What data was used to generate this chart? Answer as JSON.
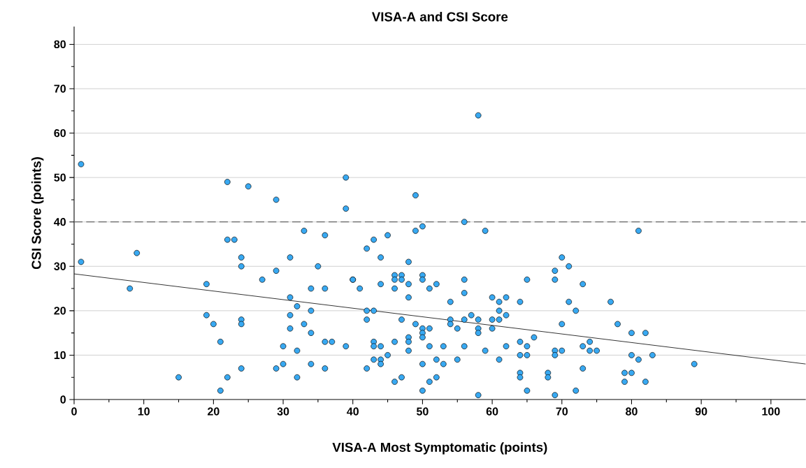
{
  "chart_data": {
    "type": "scatter",
    "title": "VISA-A and CSI Score",
    "xlabel": "VISA-A Most Symptomatic (points)",
    "ylabel": "CSI Score (points)",
    "xlim": [
      0,
      105
    ],
    "ylim": [
      0,
      84
    ],
    "xticks": [
      0,
      {
        "value": 5,
        "label": null
      },
      10,
      {
        "value": 15,
        "label": null
      },
      20,
      {
        "value": 25,
        "label": null
      },
      30,
      {
        "value": 35,
        "label": null
      },
      40,
      {
        "value": 45,
        "label": null
      },
      50,
      {
        "value": 55,
        "label": null
      },
      60,
      {
        "value": 65,
        "label": null
      },
      70,
      {
        "value": 75,
        "label": null
      },
      80,
      {
        "value": 85,
        "label": null
      },
      90,
      {
        "value": 95,
        "label": null
      },
      100
    ],
    "yticks": [
      0,
      {
        "value": 5,
        "label": null
      },
      10,
      {
        "value": 15,
        "label": null
      },
      20,
      {
        "value": 25,
        "label": null
      },
      30,
      {
        "value": 35,
        "label": null
      },
      40,
      {
        "value": 45,
        "label": null
      },
      50,
      {
        "value": 55,
        "label": null
      },
      60,
      {
        "value": 65,
        "label": null
      },
      70,
      {
        "value": 75,
        "label": null
      },
      80
    ],
    "grid": "y",
    "marker": "circle",
    "ref_lines": [
      {
        "axis": "y",
        "value": 40,
        "color": "#666666",
        "line_style": "dashed"
      }
    ],
    "series": [
      {
        "color": "#38a9f2",
        "x": [
          1,
          22,
          25,
          29,
          22,
          23,
          9,
          1,
          24,
          31,
          24,
          29,
          27,
          19,
          8,
          31,
          19,
          20,
          24,
          24,
          31,
          31,
          21,
          30,
          24,
          29,
          30,
          15,
          22,
          21,
          39,
          49,
          39,
          33,
          49,
          50,
          36,
          45,
          43,
          42,
          44,
          48,
          35,
          46,
          47,
          46,
          47,
          50,
          50,
          40,
          40,
          34,
          36,
          41,
          44,
          46,
          48,
          51,
          52,
          48,
          32,
          34,
          42,
          43,
          42,
          47,
          33,
          34,
          49,
          50,
          51,
          50,
          50,
          48,
          48,
          36,
          37,
          43,
          46,
          39,
          43,
          44,
          51,
          32,
          48,
          45,
          43,
          44,
          44,
          34,
          50,
          52,
          36,
          42,
          32,
          47,
          46,
          51,
          52,
          50,
          58,
          56,
          59,
          70,
          71,
          69,
          56,
          65,
          69,
          56,
          54,
          60,
          62,
          61,
          64,
          71,
          61,
          72,
          57,
          62,
          54,
          54,
          56,
          58,
          60,
          61,
          55,
          58,
          58,
          60,
          70,
          66,
          53,
          56,
          62,
          64,
          65,
          59,
          69,
          70,
          64,
          65,
          69,
          55,
          61,
          53,
          64,
          64,
          68,
          68,
          58,
          65,
          69,
          72,
          81,
          73,
          77,
          78,
          80,
          82,
          74,
          73,
          74,
          75,
          80,
          83,
          81,
          89,
          73,
          79,
          80,
          79,
          82
        ],
        "values": [
          53,
          49,
          48,
          45,
          36,
          36,
          33,
          31,
          32,
          32,
          30,
          29,
          27,
          26,
          25,
          23,
          19,
          17,
          18,
          17,
          19,
          16,
          13,
          12,
          7,
          7,
          8,
          5,
          5,
          2,
          50,
          46,
          43,
          38,
          38,
          39,
          37,
          37,
          36,
          34,
          32,
          31,
          30,
          28,
          28,
          27,
          27,
          28,
          27,
          27,
          27,
          25,
          25,
          25,
          26,
          25,
          26,
          25,
          26,
          23,
          21,
          20,
          20,
          20,
          18,
          18,
          17,
          15,
          17,
          16,
          16,
          15,
          14,
          14,
          13,
          13,
          13,
          13,
          13,
          12,
          12,
          12,
          12,
          11,
          11,
          10,
          9,
          9,
          8,
          8,
          8,
          9,
          7,
          7,
          5,
          5,
          4,
          4,
          5,
          2,
          64,
          40,
          38,
          32,
          30,
          29,
          27,
          27,
          27,
          24,
          22,
          23,
          23,
          22,
          22,
          22,
          20,
          20,
          19,
          19,
          18,
          17,
          18,
          18,
          18,
          18,
          16,
          16,
          15,
          16,
          17,
          14,
          12,
          12,
          12,
          13,
          12,
          11,
          11,
          11,
          10,
          10,
          10,
          9,
          9,
          8,
          6,
          5,
          6,
          5,
          1,
          2,
          1,
          2,
          38,
          26,
          22,
          17,
          15,
          15,
          13,
          12,
          11,
          11,
          10,
          10,
          9,
          8,
          7,
          6,
          6,
          4,
          4
        ]
      },
      {
        "type": "line",
        "marker": "none",
        "color": "#000000",
        "x": [
          0,
          105
        ],
        "values": [
          28.3,
          8.0
        ]
      }
    ]
  }
}
